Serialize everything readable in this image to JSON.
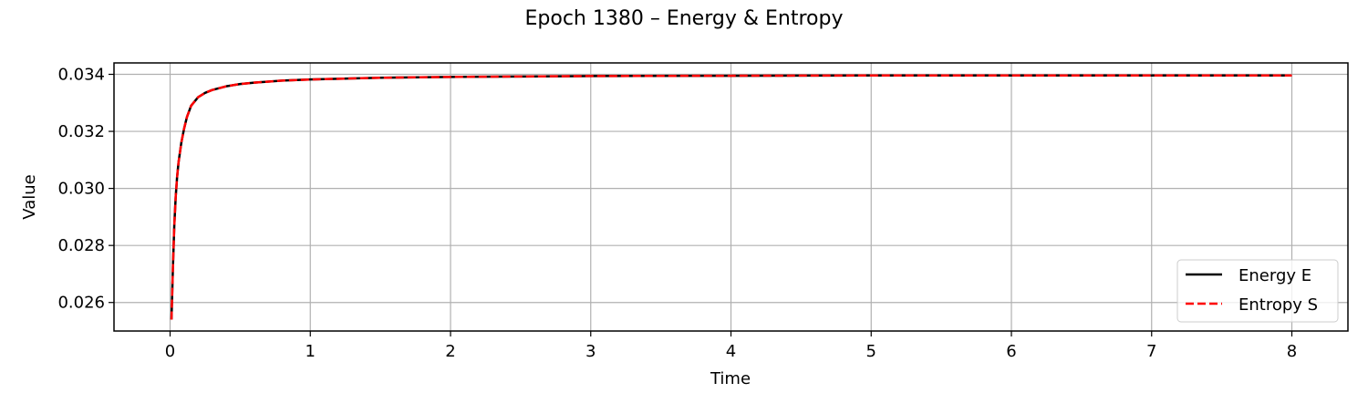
{
  "chart_data": {
    "type": "line",
    "title": "Epoch 1380 – Energy & Entropy",
    "xlabel": "Time",
    "ylabel": "Value",
    "xlim": [
      -0.4,
      8.4
    ],
    "ylim": [
      0.025,
      0.0344
    ],
    "xticks": [
      0,
      1,
      2,
      3,
      4,
      5,
      6,
      7,
      8
    ],
    "yticks": [
      0.026,
      0.028,
      0.03,
      0.032,
      0.034
    ],
    "ytick_labels": [
      "0.026",
      "0.028",
      "0.030",
      "0.032",
      "0.034"
    ],
    "xtick_labels": [
      "0",
      "1",
      "2",
      "3",
      "4",
      "5",
      "6",
      "7",
      "8"
    ],
    "grid": true,
    "legend_position": "bottom-right",
    "series": [
      {
        "name": "Energy E",
        "color": "#000000",
        "style": "solid",
        "x": [
          0.01,
          0.02,
          0.03,
          0.04,
          0.05,
          0.06,
          0.08,
          0.1,
          0.12,
          0.15,
          0.2,
          0.25,
          0.3,
          0.4,
          0.5,
          0.6,
          0.8,
          1.0,
          1.5,
          2.0,
          3.0,
          4.0,
          5.0,
          6.0,
          7.0,
          8.0
        ],
        "y": [
          0.0254,
          0.0272,
          0.0287,
          0.0297,
          0.0304,
          0.0309,
          0.0316,
          0.0321,
          0.0325,
          0.0329,
          0.0332,
          0.03335,
          0.03345,
          0.03358,
          0.03366,
          0.03371,
          0.03378,
          0.03382,
          0.03388,
          0.03391,
          0.03394,
          0.03395,
          0.03396,
          0.03396,
          0.03396,
          0.03396
        ]
      },
      {
        "name": "Entropy S",
        "color": "#ff0000",
        "style": "dashed",
        "x": [
          0.01,
          0.02,
          0.03,
          0.04,
          0.05,
          0.06,
          0.08,
          0.1,
          0.12,
          0.15,
          0.2,
          0.25,
          0.3,
          0.4,
          0.5,
          0.6,
          0.8,
          1.0,
          1.5,
          2.0,
          3.0,
          4.0,
          5.0,
          6.0,
          7.0,
          8.0
        ],
        "y": [
          0.0254,
          0.0272,
          0.0287,
          0.0297,
          0.0304,
          0.0309,
          0.0316,
          0.0321,
          0.0325,
          0.0329,
          0.0332,
          0.03335,
          0.03345,
          0.03358,
          0.03366,
          0.03371,
          0.03378,
          0.03382,
          0.03388,
          0.03391,
          0.03394,
          0.03395,
          0.03396,
          0.03396,
          0.03396,
          0.03396
        ]
      }
    ]
  }
}
